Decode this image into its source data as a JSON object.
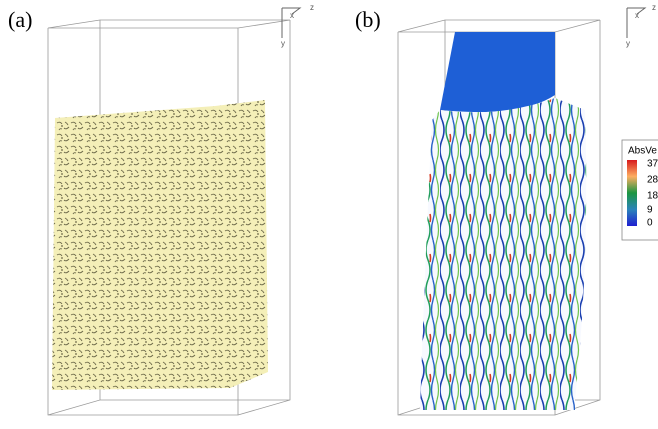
{
  "panels": [
    {
      "label": "(a)",
      "triad": {
        "z": "z",
        "x": "x",
        "y": "y"
      }
    },
    {
      "label": "(b)",
      "triad": {
        "z": "z",
        "x": "x",
        "y": "y"
      }
    }
  ],
  "legend": {
    "title": "AbsVe",
    "ticks": [
      "37",
      "28",
      "18",
      "9",
      "0"
    ]
  }
}
